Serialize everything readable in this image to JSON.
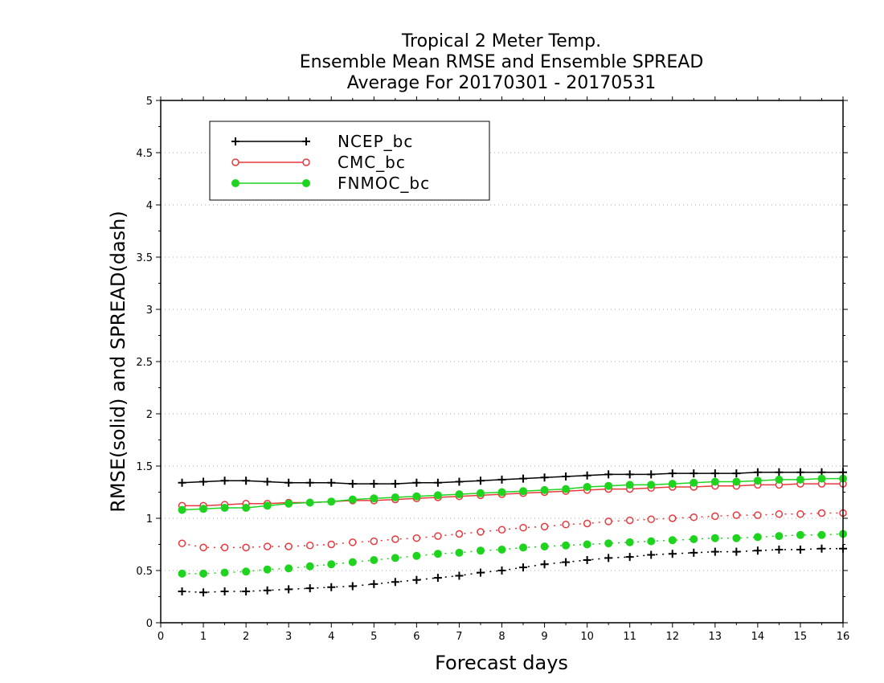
{
  "chart_data": {
    "type": "line",
    "title_lines": [
      "Tropical 2 Meter Temp.",
      "Ensemble Mean RMSE and Ensemble SPREAD",
      "Average For 20170301 - 20170531"
    ],
    "xlabel": "Forecast days",
    "ylabel": "RMSE(solid) and SPREAD(dash)",
    "xlim": [
      0,
      16
    ],
    "ylim": [
      0,
      5
    ],
    "x_ticks": [
      "0",
      "1",
      "2",
      "3",
      "4",
      "5",
      "6",
      "7",
      "8",
      "9",
      "10",
      "11",
      "12",
      "13",
      "14",
      "15",
      "16"
    ],
    "y_ticks": [
      "0",
      "0.5",
      "1",
      "1.5",
      "2",
      "2.5",
      "3",
      "3.5",
      "4",
      "4.5",
      "5"
    ],
    "grid": "horizontal dotted",
    "legend_position": "top-left",
    "x": [
      0.5,
      1,
      1.5,
      2,
      2.5,
      3,
      3.5,
      4,
      4.5,
      5,
      5.5,
      6,
      6.5,
      7,
      7.5,
      8,
      8.5,
      9,
      9.5,
      10,
      10.5,
      11,
      11.5,
      12,
      12.5,
      13,
      13.5,
      14,
      14.5,
      15,
      15.5,
      16
    ],
    "series": [
      {
        "name": "NCEP_bc",
        "color": "#000000",
        "marker": "plus",
        "rmse": [
          1.34,
          1.35,
          1.36,
          1.36,
          1.35,
          1.34,
          1.34,
          1.34,
          1.33,
          1.33,
          1.33,
          1.34,
          1.34,
          1.35,
          1.36,
          1.37,
          1.38,
          1.39,
          1.4,
          1.41,
          1.42,
          1.42,
          1.42,
          1.43,
          1.43,
          1.43,
          1.43,
          1.44,
          1.44,
          1.44,
          1.44,
          1.44
        ],
        "spread": [
          0.3,
          0.29,
          0.3,
          0.3,
          0.31,
          0.32,
          0.33,
          0.34,
          0.35,
          0.37,
          0.39,
          0.41,
          0.43,
          0.45,
          0.48,
          0.5,
          0.53,
          0.56,
          0.58,
          0.6,
          0.62,
          0.63,
          0.65,
          0.66,
          0.67,
          0.68,
          0.68,
          0.69,
          0.7,
          0.7,
          0.71,
          0.71
        ]
      },
      {
        "name": "CMC_bc",
        "color": "#e8383d",
        "marker": "open-circle",
        "rmse": [
          1.12,
          1.12,
          1.13,
          1.14,
          1.14,
          1.15,
          1.15,
          1.16,
          1.17,
          1.17,
          1.18,
          1.19,
          1.2,
          1.21,
          1.22,
          1.23,
          1.24,
          1.25,
          1.26,
          1.27,
          1.28,
          1.28,
          1.29,
          1.3,
          1.3,
          1.31,
          1.31,
          1.32,
          1.32,
          1.33,
          1.33,
          1.33
        ],
        "spread": [
          0.76,
          0.72,
          0.72,
          0.72,
          0.73,
          0.73,
          0.74,
          0.75,
          0.77,
          0.78,
          0.8,
          0.81,
          0.83,
          0.85,
          0.87,
          0.89,
          0.91,
          0.92,
          0.94,
          0.95,
          0.97,
          0.98,
          0.99,
          1.0,
          1.01,
          1.02,
          1.03,
          1.03,
          1.04,
          1.04,
          1.05,
          1.05
        ]
      },
      {
        "name": "FNMOC_bc",
        "color": "#1ed41e",
        "marker": "filled-circle",
        "rmse": [
          1.08,
          1.09,
          1.1,
          1.1,
          1.12,
          1.14,
          1.15,
          1.16,
          1.18,
          1.19,
          1.2,
          1.21,
          1.22,
          1.23,
          1.24,
          1.25,
          1.26,
          1.27,
          1.28,
          1.3,
          1.31,
          1.32,
          1.32,
          1.33,
          1.34,
          1.35,
          1.35,
          1.36,
          1.37,
          1.37,
          1.38,
          1.38
        ],
        "spread": [
          0.47,
          0.47,
          0.48,
          0.49,
          0.51,
          0.52,
          0.54,
          0.56,
          0.58,
          0.6,
          0.62,
          0.64,
          0.66,
          0.67,
          0.69,
          0.7,
          0.72,
          0.73,
          0.74,
          0.75,
          0.76,
          0.77,
          0.78,
          0.79,
          0.8,
          0.81,
          0.81,
          0.82,
          0.83,
          0.84,
          0.84,
          0.85
        ]
      }
    ]
  }
}
